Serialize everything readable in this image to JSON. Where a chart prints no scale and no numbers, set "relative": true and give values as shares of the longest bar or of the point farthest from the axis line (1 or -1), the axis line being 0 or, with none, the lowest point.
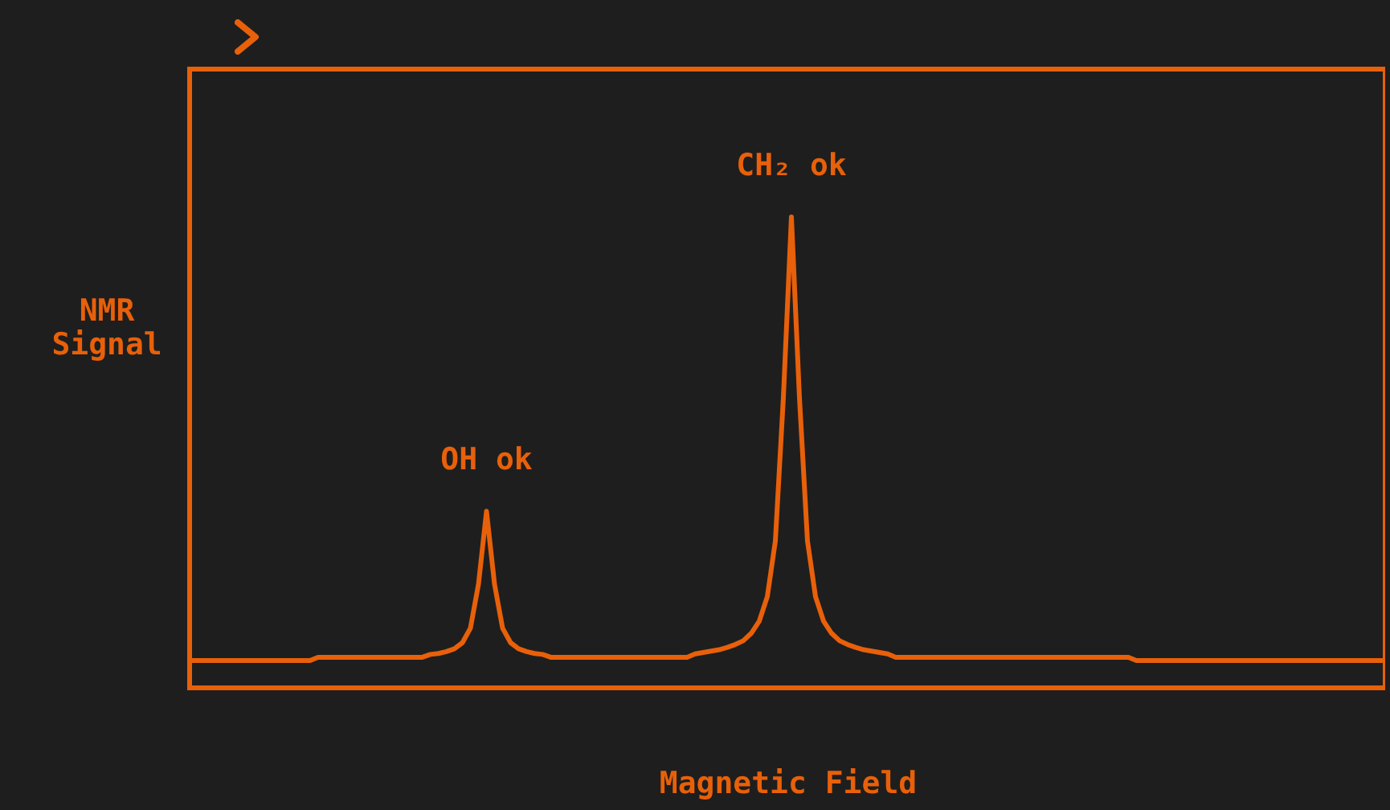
{
  "chart_data": {
    "type": "line",
    "relative": true,
    "xlabel": "Magnetic Field",
    "ylabel": "NMR Signal",
    "tick_labels": false,
    "grid": false,
    "color": "#e8600a",
    "categories": [
      null,
      null,
      null,
      null,
      null,
      null,
      null,
      null,
      null,
      null,
      null,
      null,
      null,
      null,
      null,
      null,
      null,
      null,
      null,
      null,
      null,
      null,
      null,
      null,
      null,
      null,
      null,
      null,
      null,
      null,
      null,
      null,
      null,
      null,
      null,
      null,
      null,
      null,
      null,
      null,
      null,
      null,
      null,
      null,
      null,
      null,
      null,
      null,
      null,
      null,
      null,
      null,
      null,
      null,
      null,
      null,
      null,
      null,
      null,
      null,
      null,
      null,
      null,
      null,
      null,
      null,
      null,
      null,
      null,
      null,
      null,
      null,
      null,
      null,
      null,
      null,
      null,
      null,
      null,
      null,
      null,
      null,
      null,
      null,
      null,
      null,
      null,
      null,
      null,
      null,
      null,
      null,
      null,
      null,
      null,
      null,
      null,
      null,
      null,
      null,
      null,
      null,
      null,
      null,
      null,
      null,
      null,
      null,
      null,
      null,
      null,
      null,
      null,
      null,
      null,
      null,
      null,
      null,
      null,
      null,
      null,
      null,
      null,
      null,
      null,
      null,
      null,
      null,
      null,
      null,
      null,
      null,
      null,
      null,
      null,
      null,
      null,
      null,
      null,
      null,
      null,
      null,
      null,
      null,
      null,
      null,
      null,
      null,
      null,
      null
    ],
    "values": [
      0.058,
      0.058,
      0.058,
      0.058,
      0.058,
      0.058,
      0.058,
      0.058,
      0.058,
      0.058,
      0.058,
      0.058,
      0.058,
      0.058,
      0.058,
      0.058,
      0.065,
      0.065,
      0.065,
      0.065,
      0.065,
      0.065,
      0.065,
      0.065,
      0.065,
      0.065,
      0.065,
      0.065,
      0.065,
      0.065,
      0.071,
      0.073,
      0.077,
      0.083,
      0.096,
      0.127,
      0.22,
      0.375,
      0.22,
      0.127,
      0.096,
      0.083,
      0.077,
      0.073,
      0.071,
      0.065,
      0.065,
      0.065,
      0.065,
      0.065,
      0.065,
      0.065,
      0.065,
      0.065,
      0.065,
      0.065,
      0.065,
      0.065,
      0.065,
      0.065,
      0.065,
      0.065,
      0.065,
      0.072,
      0.075,
      0.078,
      0.081,
      0.086,
      0.092,
      0.1,
      0.116,
      0.142,
      0.194,
      0.312,
      0.617,
      1,
      0.617,
      0.312,
      0.194,
      0.142,
      0.116,
      0.1,
      0.092,
      0.086,
      0.081,
      0.078,
      0.075,
      0.072,
      0.065,
      0.065,
      0.065,
      0.065,
      0.065,
      0.065,
      0.065,
      0.065,
      0.065,
      0.065,
      0.065,
      0.065,
      0.065,
      0.065,
      0.065,
      0.065,
      0.065,
      0.065,
      0.065,
      0.065,
      0.065,
      0.065,
      0.065,
      0.065,
      0.065,
      0.065,
      0.065,
      0.065,
      0.065,
      0.065,
      0.058,
      0.058,
      0.058,
      0.058,
      0.058,
      0.058,
      0.058,
      0.058,
      0.058,
      0.058,
      0.058,
      0.058,
      0.058,
      0.058,
      0.058,
      0.058,
      0.058,
      0.058,
      0.058,
      0.058,
      0.058,
      0.058,
      0.058,
      0.058,
      0.058,
      0.058,
      0.058,
      0.058,
      0.058,
      0.058,
      0.058,
      0.058
    ],
    "annotations": [
      {
        "text": "OH ok",
        "y": 0.375
      },
      {
        "text": "CH₂ ok",
        "y": 1
      }
    ]
  }
}
